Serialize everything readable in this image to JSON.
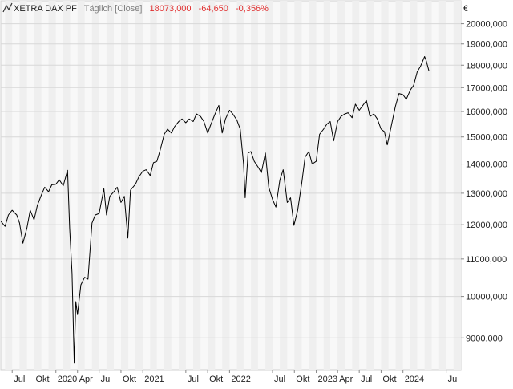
{
  "header": {
    "icon": "line-chart-icon",
    "instrument": "XETRA DAX PF",
    "interval": "Täglich [Close]",
    "last_value": "18073,000",
    "change_abs": "-64,650",
    "change_pct": "-0,356%",
    "change_color": "#e03030"
  },
  "axis": {
    "currency": "€"
  },
  "chart_data": {
    "type": "line",
    "title": "XETRA DAX PF",
    "y_scale": "log",
    "ylim": [
      8300,
      21200
    ],
    "xlim": [
      "2019-05-14",
      "2024-09-01"
    ],
    "grid": true,
    "y_ticks": [
      {
        "value": 9000,
        "label": "9000,000"
      },
      {
        "value": 10000,
        "label": "10000,000"
      },
      {
        "value": 11000,
        "label": "11000,000"
      },
      {
        "value": 12000,
        "label": "12000,000"
      },
      {
        "value": 13000,
        "label": "13000,000"
      },
      {
        "value": 14000,
        "label": "14000,000"
      },
      {
        "value": 15000,
        "label": "15000,000"
      },
      {
        "value": 16000,
        "label": "16000,000"
      },
      {
        "value": 17000,
        "label": "17000,000"
      },
      {
        "value": 18000,
        "label": "18000,000"
      },
      {
        "value": 19000,
        "label": "19000,000"
      },
      {
        "value": 20000,
        "label": "20000,000"
      }
    ],
    "x_ticks": [
      {
        "date": "2019-07-01",
        "label": "Jul"
      },
      {
        "date": "2019-10-01",
        "label": "Okt"
      },
      {
        "date": "2020-01-01",
        "label": "2020"
      },
      {
        "date": "2020-04-01",
        "label": "Apr"
      },
      {
        "date": "2020-07-01",
        "label": "Jul"
      },
      {
        "date": "2020-10-01",
        "label": "Okt"
      },
      {
        "date": "2021-01-01",
        "label": "2021"
      },
      {
        "date": "2021-07-01",
        "label": "Jul"
      },
      {
        "date": "2021-10-01",
        "label": "Okt"
      },
      {
        "date": "2022-01-01",
        "label": "2022"
      },
      {
        "date": "2022-07-01",
        "label": "Jul"
      },
      {
        "date": "2022-10-01",
        "label": "Okt"
      },
      {
        "date": "2023-01-01",
        "label": "2023"
      },
      {
        "date": "2023-04-01",
        "label": "Apr"
      },
      {
        "date": "2023-07-01",
        "label": "Jul"
      },
      {
        "date": "2023-10-01",
        "label": "Okt"
      },
      {
        "date": "2024-01-01",
        "label": "2024"
      },
      {
        "date": "2024-07-01",
        "label": "Jul"
      }
    ],
    "series": [
      {
        "color": "#000000",
        "points": [
          [
            "2019-05-15",
            12100
          ],
          [
            "2019-06-01",
            11950
          ],
          [
            "2019-06-15",
            12300
          ],
          [
            "2019-07-01",
            12450
          ],
          [
            "2019-07-20",
            12300
          ],
          [
            "2019-08-01",
            12050
          ],
          [
            "2019-08-15",
            11450
          ],
          [
            "2019-09-01",
            11900
          ],
          [
            "2019-09-15",
            12450
          ],
          [
            "2019-10-01",
            12150
          ],
          [
            "2019-10-15",
            12600
          ],
          [
            "2019-11-01",
            12950
          ],
          [
            "2019-11-15",
            13200
          ],
          [
            "2019-12-01",
            13050
          ],
          [
            "2019-12-15",
            13280
          ],
          [
            "2020-01-01",
            13300
          ],
          [
            "2020-01-15",
            13450
          ],
          [
            "2020-02-01",
            13250
          ],
          [
            "2020-02-19",
            13780
          ],
          [
            "2020-02-28",
            11900
          ],
          [
            "2020-03-09",
            10600
          ],
          [
            "2020-03-18",
            8440
          ],
          [
            "2020-03-25",
            9870
          ],
          [
            "2020-04-01",
            9550
          ],
          [
            "2020-04-15",
            10300
          ],
          [
            "2020-05-01",
            10500
          ],
          [
            "2020-05-15",
            10450
          ],
          [
            "2020-06-01",
            12050
          ],
          [
            "2020-06-15",
            12300
          ],
          [
            "2020-07-01",
            12350
          ],
          [
            "2020-07-21",
            13150
          ],
          [
            "2020-08-01",
            12300
          ],
          [
            "2020-08-15",
            12900
          ],
          [
            "2020-09-01",
            13050
          ],
          [
            "2020-09-15",
            13200
          ],
          [
            "2020-10-01",
            12700
          ],
          [
            "2020-10-15",
            12900
          ],
          [
            "2020-10-30",
            11600
          ],
          [
            "2020-11-10",
            13100
          ],
          [
            "2020-12-01",
            13300
          ],
          [
            "2020-12-15",
            13550
          ],
          [
            "2021-01-01",
            13750
          ],
          [
            "2021-01-15",
            13800
          ],
          [
            "2021-02-01",
            13600
          ],
          [
            "2021-02-15",
            14050
          ],
          [
            "2021-03-01",
            14100
          ],
          [
            "2021-03-15",
            14500
          ],
          [
            "2021-04-01",
            15100
          ],
          [
            "2021-04-15",
            15300
          ],
          [
            "2021-05-01",
            15150
          ],
          [
            "2021-05-15",
            15400
          ],
          [
            "2021-06-01",
            15600
          ],
          [
            "2021-06-15",
            15700
          ],
          [
            "2021-07-01",
            15550
          ],
          [
            "2021-07-15",
            15700
          ],
          [
            "2021-08-01",
            15600
          ],
          [
            "2021-08-15",
            15900
          ],
          [
            "2021-09-01",
            15800
          ],
          [
            "2021-09-15",
            15600
          ],
          [
            "2021-10-01",
            15150
          ],
          [
            "2021-10-15",
            15500
          ],
          [
            "2021-11-01",
            15900
          ],
          [
            "2021-11-17",
            16250
          ],
          [
            "2021-12-01",
            15150
          ],
          [
            "2021-12-15",
            15700
          ],
          [
            "2022-01-01",
            16050
          ],
          [
            "2022-01-15",
            15900
          ],
          [
            "2022-02-01",
            15650
          ],
          [
            "2022-02-15",
            15300
          ],
          [
            "2022-03-01",
            14000
          ],
          [
            "2022-03-08",
            12850
          ],
          [
            "2022-03-20",
            14400
          ],
          [
            "2022-04-01",
            14450
          ],
          [
            "2022-04-15",
            14100
          ],
          [
            "2022-05-01",
            13900
          ],
          [
            "2022-05-15",
            13700
          ],
          [
            "2022-06-01",
            14400
          ],
          [
            "2022-06-15",
            13200
          ],
          [
            "2022-07-01",
            12800
          ],
          [
            "2022-07-15",
            12550
          ],
          [
            "2022-08-01",
            13450
          ],
          [
            "2022-08-15",
            13800
          ],
          [
            "2022-09-01",
            12700
          ],
          [
            "2022-09-15",
            12850
          ],
          [
            "2022-09-29",
            11980
          ],
          [
            "2022-10-15",
            12450
          ],
          [
            "2022-11-01",
            13350
          ],
          [
            "2022-11-15",
            14250
          ],
          [
            "2022-12-01",
            14450
          ],
          [
            "2022-12-15",
            14000
          ],
          [
            "2023-01-01",
            14100
          ],
          [
            "2023-01-15",
            15100
          ],
          [
            "2023-02-01",
            15300
          ],
          [
            "2023-02-15",
            15500
          ],
          [
            "2023-03-01",
            15600
          ],
          [
            "2023-03-15",
            14850
          ],
          [
            "2023-04-01",
            15600
          ],
          [
            "2023-04-15",
            15800
          ],
          [
            "2023-05-01",
            15900
          ],
          [
            "2023-05-15",
            15950
          ],
          [
            "2023-06-01",
            15750
          ],
          [
            "2023-06-15",
            16300
          ],
          [
            "2023-07-01",
            16050
          ],
          [
            "2023-07-31",
            16450
          ],
          [
            "2023-08-15",
            15800
          ],
          [
            "2023-09-01",
            15900
          ],
          [
            "2023-09-15",
            15700
          ],
          [
            "2023-10-01",
            15300
          ],
          [
            "2023-10-15",
            15200
          ],
          [
            "2023-10-27",
            14700
          ],
          [
            "2023-11-10",
            15300
          ],
          [
            "2023-11-30",
            16200
          ],
          [
            "2023-12-15",
            16750
          ],
          [
            "2024-01-01",
            16700
          ],
          [
            "2024-01-15",
            16500
          ],
          [
            "2024-02-01",
            16900
          ],
          [
            "2024-02-15",
            17100
          ],
          [
            "2024-03-01",
            17700
          ],
          [
            "2024-03-15",
            17950
          ],
          [
            "2024-04-01",
            18400
          ],
          [
            "2024-04-08",
            18200
          ],
          [
            "2024-04-19",
            17750
          ]
        ]
      }
    ]
  }
}
